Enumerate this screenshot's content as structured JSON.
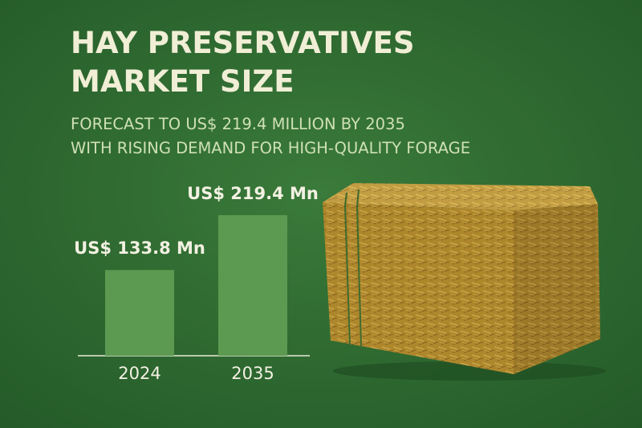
{
  "chart_data": {
    "type": "bar",
    "title": [
      "HAY PRESERVATIVES",
      "MARKET SIZE"
    ],
    "subtitle": [
      "FORECAST TO US$ 219.4 MILLION BY 2035",
      "WITH RISING DEMAND FOR HIGH-QUALITY FORAGE"
    ],
    "categories": [
      "2024",
      "2035"
    ],
    "values": [
      133.8,
      219.4
    ],
    "value_labels": [
      "US$ 133.8 Mn",
      "US$ 219.4 Mn"
    ],
    "color": "#5b9a50"
  }
}
